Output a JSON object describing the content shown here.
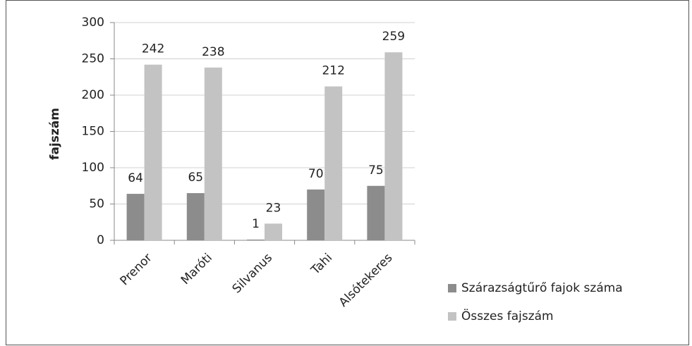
{
  "chart_data": {
    "type": "bar",
    "ylabel": "fajszám",
    "categories": [
      "Prenor",
      "Maróti",
      "Silvanus",
      "Tahi",
      "Alsótekeres"
    ],
    "series": [
      {
        "name": "Szárazságtűrő fajok száma",
        "color": "#8c8c8c",
        "values": [
          64,
          65,
          1,
          70,
          75
        ]
      },
      {
        "name": "Összes fajszám",
        "color": "#c3c3c3",
        "values": [
          242,
          238,
          23,
          212,
          259
        ]
      }
    ],
    "ylim": [
      0,
      300
    ],
    "yticks": [
      0,
      50,
      100,
      150,
      200,
      250,
      300
    ],
    "grid": true,
    "legend": "right"
  }
}
